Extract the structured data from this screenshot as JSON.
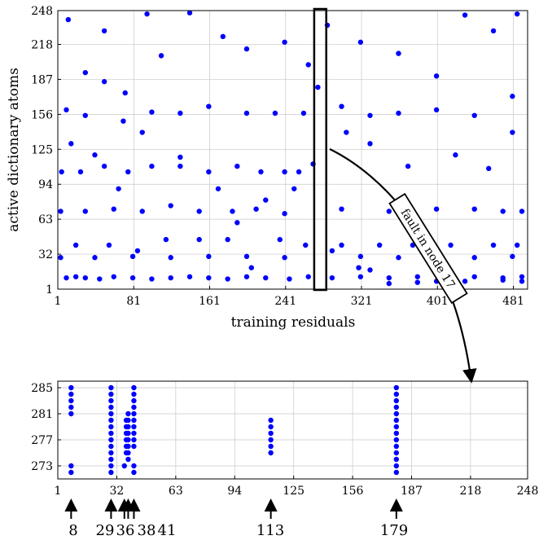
{
  "chart_data": [
    {
      "type": "scatter",
      "title": "",
      "xlabel": "training residuals",
      "ylabel": "active dictionary atoms",
      "xlim": [
        1,
        496
      ],
      "ylim": [
        1,
        248
      ],
      "xticks": [
        "1",
        "81",
        "161",
        "241",
        "321",
        "401",
        "481"
      ],
      "yticks": [
        "1",
        "32",
        "63",
        "94",
        "125",
        "156",
        "187",
        "218",
        "248"
      ],
      "grid": true,
      "marker_color": "#0000ff",
      "highlight": {
        "x_range": [
          272,
          283
        ],
        "y_range": [
          1,
          248
        ]
      },
      "annotation": "fault in node 17",
      "series": [
        {
          "name": "",
          "points": [
            [
              10,
              11
            ],
            [
              20,
              12
            ],
            [
              30,
              11
            ],
            [
              45,
              10
            ],
            [
              60,
              12
            ],
            [
              80,
              11
            ],
            [
              100,
              10
            ],
            [
              120,
              11
            ],
            [
              140,
              12
            ],
            [
              160,
              11
            ],
            [
              180,
              10
            ],
            [
              200,
              12
            ],
            [
              220,
              11
            ],
            [
              245,
              10
            ],
            [
              265,
              12
            ],
            [
              290,
              11
            ],
            [
              320,
              12
            ],
            [
              350,
              11
            ],
            [
              380,
              12
            ],
            [
              410,
              11
            ],
            [
              440,
              12
            ],
            [
              470,
              11
            ],
            [
              490,
              12
            ],
            [
              5,
              105
            ],
            [
              25,
              105
            ],
            [
              50,
              110
            ],
            [
              75,
              105
            ],
            [
              100,
              110
            ],
            [
              130,
              110
            ],
            [
              160,
              105
            ],
            [
              190,
              110
            ],
            [
              215,
              105
            ],
            [
              240,
              105
            ],
            [
              255,
              105
            ],
            [
              270,
              112
            ],
            [
              4,
              70
            ],
            [
              30,
              70
            ],
            [
              60,
              72
            ],
            [
              90,
              70
            ],
            [
              120,
              75
            ],
            [
              150,
              70
            ],
            [
              185,
              70
            ],
            [
              210,
              72
            ],
            [
              240,
              68
            ],
            [
              300,
              72
            ],
            [
              350,
              70
            ],
            [
              400,
              72
            ],
            [
              440,
              72
            ],
            [
              470,
              70
            ],
            [
              490,
              70
            ],
            [
              4,
              29
            ],
            [
              40,
              29
            ],
            [
              80,
              30
            ],
            [
              120,
              29
            ],
            [
              160,
              30
            ],
            [
              200,
              30
            ],
            [
              240,
              29
            ],
            [
              290,
              35
            ],
            [
              320,
              30
            ],
            [
              360,
              29
            ],
            [
              400,
              30
            ],
            [
              440,
              29
            ],
            [
              480,
              30
            ],
            [
              10,
              160
            ],
            [
              30,
              155
            ],
            [
              50,
              185
            ],
            [
              70,
              150
            ],
            [
              100,
              158
            ],
            [
              130,
              157
            ],
            [
              160,
              163
            ],
            [
              200,
              157
            ],
            [
              230,
              157
            ],
            [
              260,
              157
            ],
            [
              300,
              163
            ],
            [
              330,
              155
            ],
            [
              360,
              157
            ],
            [
              400,
              160
            ],
            [
              440,
              155
            ],
            [
              480,
              172
            ],
            [
              12,
              240
            ],
            [
              30,
              193
            ],
            [
              50,
              230
            ],
            [
              72,
              175
            ],
            [
              95,
              245
            ],
            [
              110,
              208
            ],
            [
              140,
              246
            ],
            [
              175,
              225
            ],
            [
              200,
              214
            ],
            [
              240,
              220
            ],
            [
              265,
              200
            ],
            [
              285,
              235
            ],
            [
              320,
              220
            ],
            [
              360,
              210
            ],
            [
              400,
              190
            ],
            [
              430,
              244
            ],
            [
              460,
              230
            ],
            [
              485,
              245
            ],
            [
              15,
              130
            ],
            [
              40,
              120
            ],
            [
              65,
              90
            ],
            [
              90,
              140
            ],
            [
              130,
              118
            ],
            [
              170,
              90
            ],
            [
              190,
              60
            ],
            [
              220,
              80
            ],
            [
              250,
              90
            ],
            [
              275,
              180
            ],
            [
              305,
              140
            ],
            [
              330,
              130
            ],
            [
              370,
              110
            ],
            [
              420,
              120
            ],
            [
              455,
              108
            ],
            [
              480,
              140
            ],
            [
              20,
              40
            ],
            [
              55,
              40
            ],
            [
              85,
              35
            ],
            [
              115,
              45
            ],
            [
              150,
              45
            ],
            [
              180,
              45
            ],
            [
              205,
              20
            ],
            [
              235,
              45
            ],
            [
              262,
              40
            ],
            [
              300,
              40
            ],
            [
              340,
              40
            ],
            [
              375,
              40
            ],
            [
              415,
              40
            ],
            [
              460,
              40
            ],
            [
              485,
              40
            ],
            [
              318,
              20
            ],
            [
              330,
              18
            ],
            [
              350,
              6
            ],
            [
              380,
              7
            ],
            [
              400,
              8
            ],
            [
              430,
              8
            ],
            [
              470,
              9
            ],
            [
              490,
              8
            ]
          ]
        }
      ]
    },
    {
      "type": "scatter",
      "title": "",
      "xlabel": "",
      "ylabel": "",
      "xlim": [
        1,
        248
      ],
      "ylim": [
        271,
        286
      ],
      "xticks": [
        "1",
        "32",
        "63",
        "94",
        "125",
        "156",
        "187",
        "218",
        "248"
      ],
      "yticks": [
        "273",
        "277",
        "281",
        "285"
      ],
      "grid": true,
      "marker_color": "#0000ff",
      "series": [
        {
          "name": "",
          "points": [
            [
              8,
              285
            ],
            [
              8,
              284
            ],
            [
              8,
              283
            ],
            [
              8,
              282
            ],
            [
              8,
              281
            ],
            [
              8,
              273
            ],
            [
              8,
              272
            ],
            [
              29,
              285
            ],
            [
              29,
              284
            ],
            [
              29,
              283
            ],
            [
              29,
              282
            ],
            [
              29,
              281
            ],
            [
              29,
              280
            ],
            [
              29,
              279
            ],
            [
              29,
              278
            ],
            [
              29,
              277
            ],
            [
              29,
              276
            ],
            [
              29,
              275
            ],
            [
              29,
              274
            ],
            [
              29,
              273
            ],
            [
              29,
              272
            ],
            [
              36,
              273
            ],
            [
              37,
              280
            ],
            [
              37,
              279
            ],
            [
              37,
              278
            ],
            [
              37,
              277
            ],
            [
              37,
              276
            ],
            [
              37,
              275
            ],
            [
              38,
              281
            ],
            [
              38,
              280
            ],
            [
              38,
              279
            ],
            [
              38,
              278
            ],
            [
              38,
              277
            ],
            [
              38,
              276
            ],
            [
              38,
              275
            ],
            [
              38,
              274
            ],
            [
              41,
              285
            ],
            [
              41,
              284
            ],
            [
              41,
              283
            ],
            [
              41,
              282
            ],
            [
              41,
              281
            ],
            [
              41,
              280
            ],
            [
              41,
              279
            ],
            [
              41,
              278
            ],
            [
              41,
              277
            ],
            [
              41,
              276
            ],
            [
              41,
              273
            ],
            [
              41,
              272
            ],
            [
              113,
              280
            ],
            [
              113,
              279
            ],
            [
              113,
              278
            ],
            [
              113,
              277
            ],
            [
              113,
              276
            ],
            [
              113,
              275
            ],
            [
              179,
              285
            ],
            [
              179,
              284
            ],
            [
              179,
              283
            ],
            [
              179,
              282
            ],
            [
              179,
              281
            ],
            [
              179,
              280
            ],
            [
              179,
              279
            ],
            [
              179,
              278
            ],
            [
              179,
              277
            ],
            [
              179,
              276
            ],
            [
              179,
              275
            ],
            [
              179,
              274
            ],
            [
              179,
              273
            ],
            [
              179,
              272
            ]
          ]
        }
      ],
      "arrows": [
        {
          "x": 8,
          "label": "8"
        },
        {
          "x": 29,
          "label": "29"
        },
        {
          "x": 36,
          "label": "36"
        },
        {
          "x": 38,
          "label": "38"
        },
        {
          "x": 41,
          "label": "41"
        },
        {
          "x": 113,
          "label": "113"
        },
        {
          "x": 179,
          "label": "179"
        }
      ]
    }
  ]
}
